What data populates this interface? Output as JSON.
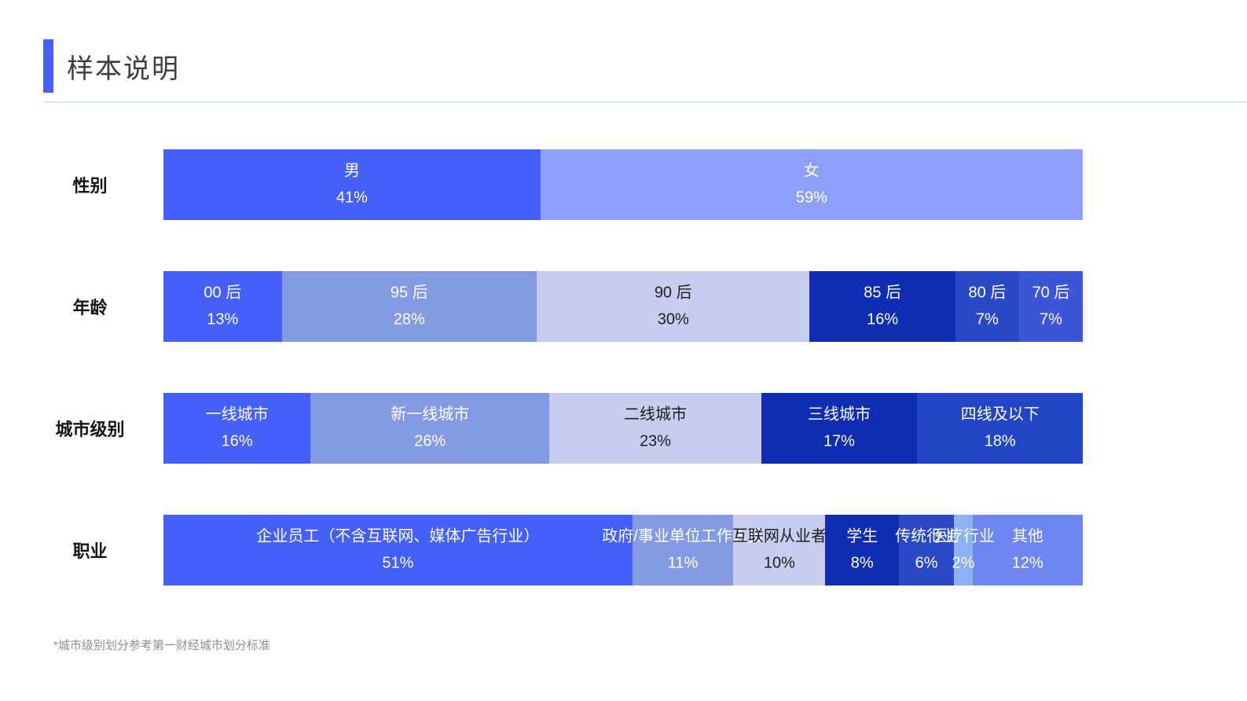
{
  "header": {
    "title": "样本说明",
    "accent_color": "#4560F8"
  },
  "footnote": "*城市级别划分参考第一财经城市划分标准",
  "chart_data": {
    "type": "bar",
    "subtype": "horizontal-stacked-percentage",
    "title": "样本说明",
    "unit": "%",
    "xlim": [
      0,
      100
    ],
    "grid": false,
    "legend": "none",
    "rows": [
      {
        "category": "性别",
        "segments": [
          {
            "label": "男",
            "value": 41,
            "display": "41%",
            "color": "#4560F8",
            "text_color": "#FFFFFF"
          },
          {
            "label": "女",
            "value": 59,
            "display": "59%",
            "color": "#8D9FF8",
            "text_color": "#FFFFFF"
          }
        ]
      },
      {
        "category": "年龄",
        "segments": [
          {
            "label": "00 后",
            "value": 13,
            "display": "13%",
            "color": "#4560F8",
            "text_color": "#FFFFFF"
          },
          {
            "label": "95 后",
            "value": 28,
            "display": "28%",
            "color": "#849BE3",
            "text_color": "#FFFFFF"
          },
          {
            "label": "90 后",
            "value": 30,
            "display": "30%",
            "color": "#C8CCEF",
            "text_color": "#1E1E1E"
          },
          {
            "label": "85 后",
            "value": 16,
            "display": "16%",
            "color": "#0E2DB2",
            "text_color": "#FFFFFF"
          },
          {
            "label": "80 后",
            "value": 7,
            "display": "7%",
            "color": "#2B49C6",
            "text_color": "#FFFFFF"
          },
          {
            "label": "70 后",
            "value": 7,
            "display": "7%",
            "color": "#3D56D8",
            "text_color": "#FFFFFF"
          }
        ]
      },
      {
        "category": "城市级别",
        "segments": [
          {
            "label": "一线城市",
            "value": 16,
            "display": "16%",
            "color": "#4560F8",
            "text_color": "#FFFFFF"
          },
          {
            "label": "新一线城市",
            "value": 26,
            "display": "26%",
            "color": "#849BE3",
            "text_color": "#FFFFFF"
          },
          {
            "label": "二线城市",
            "value": 23,
            "display": "23%",
            "color": "#C8CCEF",
            "text_color": "#1E1E1E"
          },
          {
            "label": "三线城市",
            "value": 17,
            "display": "17%",
            "color": "#0E2DB2",
            "text_color": "#FFFFFF"
          },
          {
            "label": "四线及以下",
            "value": 18,
            "display": "18%",
            "color": "#2245C3",
            "text_color": "#FFFFFF"
          }
        ]
      },
      {
        "category": "职业",
        "segments": [
          {
            "label": "企业员工（不含互联网、媒体广告行业）",
            "value": 51,
            "display": "51%",
            "color": "#4560F8",
            "text_color": "#FFFFFF"
          },
          {
            "label": "政府/事业单位工作人员",
            "value": 11,
            "display": "11%",
            "color": "#849BE3",
            "text_color": "#FFFFFF"
          },
          {
            "label": "互联网从业者",
            "value": 10,
            "display": "10%",
            "color": "#C8CCEF",
            "text_color": "#1E1E1E"
          },
          {
            "label": "学生",
            "value": 8,
            "display": "8%",
            "color": "#0E2DB2",
            "text_color": "#FFFFFF"
          },
          {
            "label": "传统行业",
            "value": 6,
            "display": "6%",
            "color": "#2B49C6",
            "text_color": "#FFFFFF"
          },
          {
            "label": "医疗行业",
            "value": 2,
            "display": "2%",
            "color": "#8CB2F4",
            "text_color": "#FFFFFF"
          },
          {
            "label": "其他",
            "value": 12,
            "display": "12%",
            "color": "#6F85F2",
            "text_color": "#FFFFFF"
          }
        ]
      }
    ]
  }
}
